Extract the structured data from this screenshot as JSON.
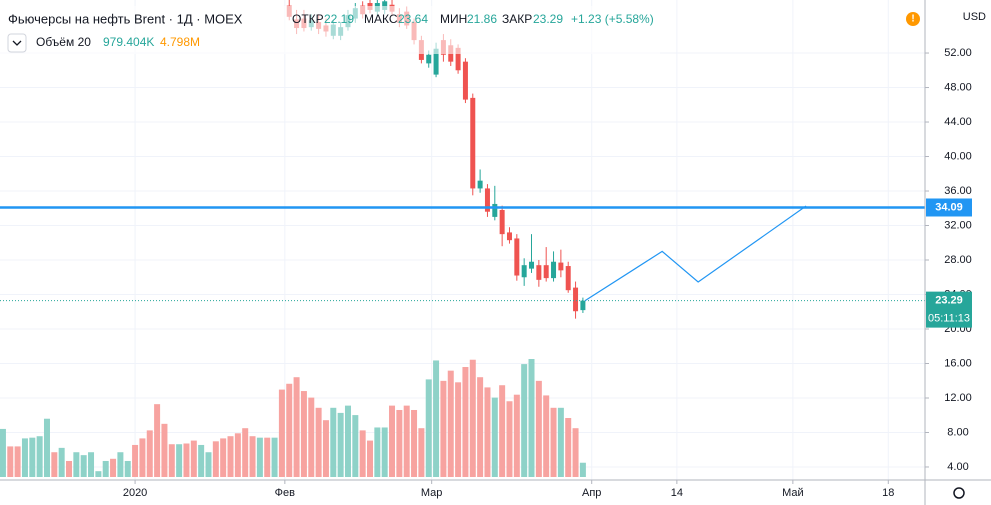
{
  "chart_data": {
    "type": "candlestick",
    "title": "Фьючерсы на нефть Brent · 1Д · MOEX",
    "ohlc_labels": {
      "open": "ОТКР",
      "open_value": "22.19",
      "high": "МАКС",
      "high_value": "23.64",
      "low": "МИН",
      "low_value": "21.86",
      "close": "ЗАКР",
      "close_value": "23.29",
      "change": "+1.23 (+5.58%)"
    },
    "currency": "USD",
    "xlim": [
      -0.4,
      125.6
    ],
    "xticks": [
      {
        "value": 18.0,
        "label": "2020"
      },
      {
        "value": 38.4,
        "label": "Фев"
      },
      {
        "value": 58.4,
        "label": "Мар"
      },
      {
        "value": 80.2,
        "label": "Апр"
      },
      {
        "value": 91.8,
        "label": "14"
      },
      {
        "value": 107.6,
        "label": "Май"
      },
      {
        "value": 120.6,
        "label": "18"
      }
    ],
    "ylim": [
      2.49,
      58.15
    ],
    "yticks": [
      {
        "value": 4,
        "label": "4.00"
      },
      {
        "value": 8,
        "label": "8.00"
      },
      {
        "value": 12,
        "label": "12.00"
      },
      {
        "value": 16,
        "label": "16.00"
      },
      {
        "value": 20,
        "label": "20.00"
      },
      {
        "value": 24,
        "label": "24.00"
      },
      {
        "value": 28,
        "label": "28.00"
      },
      {
        "value": 32,
        "label": "32.00"
      },
      {
        "value": 36,
        "label": "36.00"
      },
      {
        "value": 40,
        "label": "40.00"
      },
      {
        "value": 44,
        "label": "44.00"
      },
      {
        "value": 48,
        "label": "48.00"
      },
      {
        "value": 52,
        "label": "52.00"
      }
    ],
    "grid": true,
    "up_color": "#26a69a",
    "down_color": "#ef5350",
    "x": [
      39,
      40,
      41,
      42,
      43,
      44,
      45,
      46,
      47,
      48,
      49,
      50,
      51,
      52,
      53,
      54,
      55,
      56,
      57,
      58,
      59,
      60,
      61,
      62,
      63,
      64,
      65,
      66,
      67,
      68,
      69,
      70,
      71,
      72,
      73,
      74,
      75,
      76,
      77,
      78,
      79
    ],
    "open": [
      57.5,
      55.9,
      56.0,
      55.0,
      55.6,
      55.2,
      54.0,
      54.0,
      55.0,
      56.0,
      57.5,
      57.8,
      56.8,
      57.0,
      57.6,
      56.5,
      56.8,
      55.6,
      53.5,
      50.8,
      49.5,
      53.5,
      52.9,
      52.6,
      51.0,
      46.8,
      36.3,
      36.3,
      33.0,
      33.8,
      31.2,
      30.5,
      26.0,
      27.0,
      27.4,
      27.4,
      25.9,
      27.7,
      27.3,
      24.8,
      22.19
    ],
    "high": [
      58.5,
      57.0,
      57.0,
      56.5,
      56.5,
      56.0,
      55.8,
      55.6,
      57.0,
      57.8,
      58.0,
      58.3,
      58.3,
      58.5,
      58.2,
      57.2,
      57.4,
      56.0,
      54.0,
      52.3,
      53.2,
      54.2,
      53.6,
      53.0,
      51.4,
      47.3,
      38.5,
      36.8,
      36.6,
      34.3,
      31.8,
      31.0,
      28.2,
      31.0,
      28.0,
      29.5,
      29.0,
      29.2,
      27.8,
      25.5,
      23.64
    ],
    "low": [
      55.8,
      54.2,
      54.5,
      54.6,
      54.2,
      53.9,
      53.6,
      53.5,
      54.6,
      55.5,
      56.0,
      56.6,
      56.3,
      56.5,
      56.3,
      55.0,
      54.8,
      53.0,
      50.8,
      50.3,
      49.2,
      51.0,
      50.5,
      49.6,
      46.2,
      35.5,
      35.8,
      33.0,
      32.6,
      29.6,
      29.9,
      25.6,
      25.0,
      26.5,
      24.9,
      25.5,
      25.5,
      26.0,
      24.2,
      21.2,
      21.86
    ],
    "close": [
      56.2,
      54.9,
      54.9,
      55.8,
      54.8,
      54.5,
      55.3,
      55.0,
      56.4,
      57.2,
      56.5,
      57.0,
      57.8,
      58.0,
      56.8,
      55.5,
      55.2,
      53.5,
      51.2,
      51.8,
      52.5,
      51.8,
      51.0,
      50.0,
      46.6,
      36.3,
      37.2,
      33.6,
      34.5,
      31.0,
      30.3,
      26.2,
      27.4,
      27.8,
      25.7,
      25.9,
      27.8,
      26.8,
      24.5,
      22.06,
      23.29
    ],
    "volume": {
      "name": "Объём 20",
      "value_label": "979.404K",
      "average_label": "4.798M",
      "values": [
        3300,
        2100,
        2100,
        2650,
        2700,
        2800,
        4000,
        1700,
        2000,
        1100,
        1700,
        1500,
        1700,
        400,
        1100,
        1250,
        1700,
        1100,
        2200,
        2650,
        3200,
        5000,
        3650,
        2250,
        2250,
        2300,
        2500,
        2200,
        1700,
        2450,
        2650,
        2800,
        3000,
        3350,
        2800,
        2700,
        2700,
        2700,
        6000,
        6400,
        6850,
        5900,
        5450,
        4750,
        3900,
        4750,
        4400,
        4900,
        4250,
        3200,
        2500,
        3400,
        3400,
        4900,
        4600,
        4900,
        4600,
        3350,
        6700,
        8000,
        6600,
        7300,
        6500,
        7550,
        8050,
        6850,
        6150,
        5450,
        6300,
        5200,
        5650,
        7750,
        8100,
        6600,
        5600,
        4750,
        4750,
        4050,
        3350,
        979.404
      ],
      "colors": [
        "#8ed2c8",
        "#f7a3a0",
        "#f7a3a0",
        "#8ed2c8",
        "#8ed2c8",
        "#8ed2c8",
        "#8ed2c8",
        "#f7a3a0",
        "#8ed2c8",
        "#f7a3a0",
        "#8ed2c8",
        "#8ed2c8",
        "#8ed2c8",
        "#8ed2c8",
        "#8ed2c8",
        "#f7a3a0",
        "#8ed2c8",
        "#8ed2c8",
        "#f7a3a0",
        "#f7a3a0",
        "#f7a3a0",
        "#f7a3a0",
        "#f7a3a0",
        "#f7a3a0",
        "#8ed2c8",
        "#f7a3a0",
        "#f7a3a0",
        "#8ed2c8",
        "#8ed2c8",
        "#f7a3a0",
        "#f7a3a0",
        "#f7a3a0",
        "#f7a3a0",
        "#f7a3a0",
        "#f7a3a0",
        "#8ed2c8",
        "#f7a3a0",
        "#8ed2c8",
        "#f7a3a0",
        "#f7a3a0",
        "#f7a3a0",
        "#f7a3a0",
        "#f7a3a0",
        "#f7a3a0",
        "#f7a3a0",
        "#8ed2c8",
        "#8ed2c8",
        "#8ed2c8",
        "#8ed2c8",
        "#f7a3a0",
        "#f7a3a0",
        "#8ed2c8",
        "#8ed2c8",
        "#f7a3a0",
        "#f7a3a0",
        "#f7a3a0",
        "#f7a3a0",
        "#f7a3a0",
        "#8ed2c8",
        "#8ed2c8",
        "#f7a3a0",
        "#f7a3a0",
        "#f7a3a0",
        "#f7a3a0",
        "#f7a3a0",
        "#f7a3a0",
        "#f7a3a0",
        "#8ed2c8",
        "#f7a3a0",
        "#f7a3a0",
        "#f7a3a0",
        "#8ed2c8",
        "#8ed2c8",
        "#f7a3a0",
        "#f7a3a0",
        "#f7a3a0",
        "#8ed2c8",
        "#f7a3a0",
        "#f7a3a0",
        "#8ed2c8"
      ]
    },
    "level_line": {
      "value": 34.09,
      "label": "34.09",
      "color": "#2196f3"
    },
    "last_price": {
      "value": 23.29,
      "label": "23.29",
      "countdown": "05:11:13",
      "color": "#26a69a"
    },
    "drawing": {
      "color": "#2196f3",
      "x": [
        79.3,
        89.8,
        94.7,
        109.4
      ],
      "y": [
        23.29,
        29.0,
        25.45,
        34.26
      ]
    }
  }
}
